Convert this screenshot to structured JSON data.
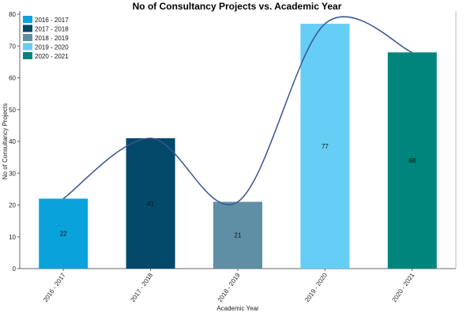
{
  "chart_data": {
    "type": "bar",
    "title": "No of Consultancy Projects vs. Academic Year",
    "xlabel": "Academic Year",
    "ylabel": "No of Consultancy Projects",
    "categories": [
      "2016 - 2017",
      "2017 - 2018",
      "2018 - 2019",
      "2019 - 2020",
      "2020 - 2021"
    ],
    "values": [
      22,
      41,
      21,
      77,
      68
    ],
    "data_labels": [
      "22",
      "41",
      "21",
      "77",
      "68"
    ],
    "colors": [
      "#0aa2db",
      "#03496a",
      "#5e8fa5",
      "#66cdf5",
      "#00857c"
    ],
    "line_color": "#3a5592",
    "ylim": [
      0,
      80
    ],
    "yticks": [
      0,
      10,
      20,
      30,
      40,
      50,
      60,
      70,
      80
    ],
    "ytick_labels": [
      "0",
      "10",
      "20",
      "30",
      "40",
      "50",
      "60",
      "70",
      "80"
    ],
    "grid": false,
    "legend": {
      "placement": "top-left",
      "entries": [
        "2016 - 2017",
        "2017 - 2018",
        "2018 - 2019",
        "2019 - 2020",
        "2020 - 2021"
      ]
    },
    "overlay": "smoothed line through bar tops"
  }
}
